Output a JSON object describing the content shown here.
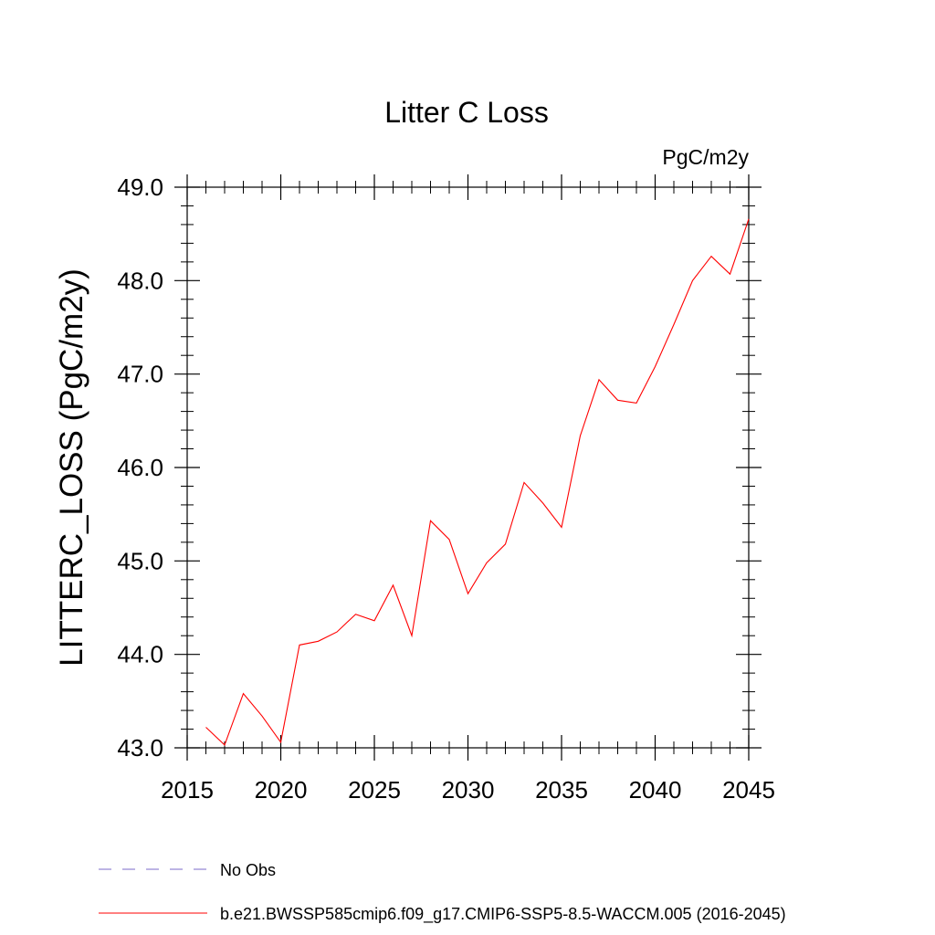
{
  "chart_data": {
    "type": "line",
    "title": "Litter C Loss",
    "units_label": "PgC/m2y",
    "xlabel": "",
    "ylabel": "LITTERC_LOSS  (PgC/m2y)",
    "xlim": [
      2015,
      2045
    ],
    "ylim": [
      43.0,
      49.0
    ],
    "x_ticks": [
      2015,
      2020,
      2025,
      2030,
      2035,
      2040,
      2045
    ],
    "x_tick_labels": [
      "2015",
      "2020",
      "2025",
      "2030",
      "2035",
      "2040",
      "2045"
    ],
    "y_ticks": [
      43.0,
      44.0,
      45.0,
      46.0,
      47.0,
      48.0,
      49.0
    ],
    "y_tick_labels": [
      "43.0",
      "44.0",
      "45.0",
      "46.0",
      "47.0",
      "48.0",
      "49.0"
    ],
    "x_minor_step": 1,
    "y_minor_step": 0.2,
    "grid": false,
    "legend_position": "bottom",
    "series": [
      {
        "name": "b.e21.BWSSP585cmip6.f09_g17.CMIP6-SSP5-8.5-WACCM.005 (2016-2045)",
        "color": "#ff0000",
        "x": [
          2016,
          2017,
          2018,
          2019,
          2020,
          2021,
          2022,
          2023,
          2024,
          2025,
          2026,
          2027,
          2028,
          2029,
          2030,
          2031,
          2032,
          2033,
          2034,
          2035,
          2036,
          2037,
          2038,
          2039,
          2040,
          2041,
          2042,
          2043,
          2044,
          2045
        ],
        "y": [
          43.22,
          43.03,
          43.58,
          43.34,
          43.06,
          44.1,
          44.14,
          44.24,
          44.43,
          44.36,
          44.74,
          44.2,
          45.43,
          45.23,
          44.65,
          44.98,
          45.18,
          45.84,
          45.62,
          45.36,
          46.34,
          46.94,
          46.72,
          46.69,
          47.08,
          47.53,
          48.0,
          48.26,
          48.07,
          48.66
        ]
      }
    ],
    "legend": [
      {
        "label": "No Obs",
        "color": "#7b68c8",
        "dash": "dashed"
      },
      {
        "label": "b.e21.BWSSP585cmip6.f09_g17.CMIP6-SSP5-8.5-WACCM.005 (2016-2045)",
        "color": "#ff0000",
        "dash": "solid"
      }
    ]
  }
}
